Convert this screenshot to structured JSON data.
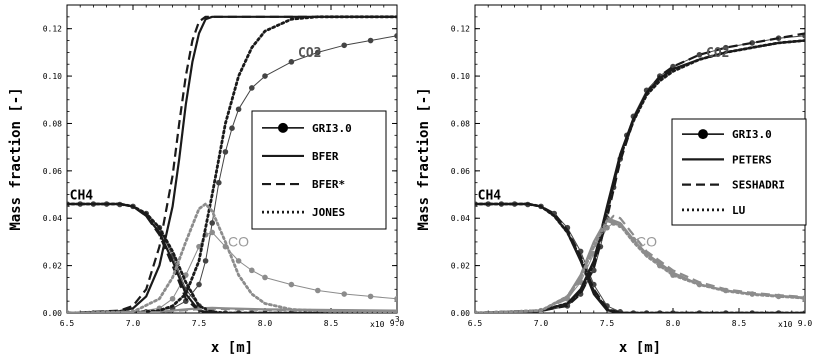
{
  "colors": {
    "dark": "#1a1a1a",
    "mid": "#444444",
    "co_gray": "#8c8c8c",
    "co_label": "#9a9a9a",
    "ch4_label": "#000000",
    "co2_label": "#555555"
  },
  "chart_data": [
    {
      "type": "line",
      "xlabel": "x [m]",
      "ylabel": "Mass fraction [-]",
      "xlim": [
        6.5,
        9.0
      ],
      "ylim": [
        0.0,
        0.13
      ],
      "x_multiplier_label": "x10",
      "x_multiplier_exponent": "-3",
      "xticks": [
        6.5,
        7.0,
        7.5,
        8.0,
        8.5,
        9.0
      ],
      "xtick_labels": [
        "6.5",
        "7.0",
        "7.5",
        "8.0",
        "8.5",
        "9.0"
      ],
      "yticks": [
        0.0,
        0.02,
        0.04,
        0.06,
        0.08,
        0.1,
        0.12
      ],
      "ytick_labels": [
        "0.00",
        "0.02",
        "0.04",
        "0.06",
        "0.08",
        "0.10",
        "0.12"
      ],
      "grid": false,
      "legend_position": "center-right",
      "legend": [
        "GRI3.0",
        "BFER",
        "BFER*",
        "JONES"
      ],
      "annotations": [
        "CH4",
        "CO2",
        "CO"
      ],
      "series": [
        {
          "name": "GRI3.0",
          "species": "CH4",
          "style": "marker-line",
          "x": [
            6.5,
            6.6,
            6.7,
            6.8,
            6.9,
            7.0,
            7.1,
            7.2,
            7.3,
            7.4,
            7.5,
            7.6,
            7.7,
            7.8,
            7.9,
            8.0,
            8.2,
            8.4,
            8.6,
            8.8,
            9.0
          ],
          "y": [
            0.046,
            0.046,
            0.046,
            0.046,
            0.0458,
            0.045,
            0.042,
            0.036,
            0.024,
            0.01,
            0.003,
            0.0005,
            0,
            0,
            0,
            0,
            0,
            0,
            0,
            0,
            0
          ]
        },
        {
          "name": "GRI3.0",
          "species": "CO2",
          "style": "marker-line",
          "x": [
            6.5,
            6.7,
            6.9,
            7.1,
            7.3,
            7.4,
            7.5,
            7.55,
            7.6,
            7.65,
            7.7,
            7.75,
            7.8,
            7.9,
            8.0,
            8.2,
            8.4,
            8.6,
            8.8,
            9.0
          ],
          "y": [
            0,
            0,
            0,
            0.0005,
            0.002,
            0.005,
            0.012,
            0.022,
            0.038,
            0.055,
            0.068,
            0.078,
            0.086,
            0.095,
            0.1,
            0.106,
            0.11,
            0.113,
            0.115,
            0.117
          ]
        },
        {
          "name": "GRI3.0",
          "species": "CO",
          "style": "marker-line-gray",
          "x": [
            6.5,
            6.8,
            7.0,
            7.2,
            7.3,
            7.4,
            7.5,
            7.55,
            7.6,
            7.7,
            7.8,
            7.9,
            8.0,
            8.2,
            8.4,
            8.6,
            8.8,
            9.0
          ],
          "y": [
            0,
            0,
            0.0003,
            0.002,
            0.006,
            0.016,
            0.028,
            0.033,
            0.034,
            0.028,
            0.022,
            0.018,
            0.015,
            0.012,
            0.0095,
            0.008,
            0.007,
            0.006
          ]
        },
        {
          "name": "BFER",
          "species": "CH4",
          "style": "solid",
          "x": [
            6.5,
            6.9,
            7.0,
            7.1,
            7.2,
            7.3,
            7.4,
            7.5,
            7.6,
            7.7,
            9.0
          ],
          "y": [
            0.046,
            0.046,
            0.045,
            0.041,
            0.034,
            0.022,
            0.008,
            0.001,
            0,
            0,
            0
          ]
        },
        {
          "name": "BFER",
          "species": "CO2",
          "style": "solid",
          "x": [
            6.5,
            6.9,
            7.0,
            7.1,
            7.2,
            7.3,
            7.35,
            7.4,
            7.45,
            7.5,
            7.55,
            7.6,
            7.7,
            9.0
          ],
          "y": [
            0,
            0.0008,
            0.002,
            0.007,
            0.02,
            0.045,
            0.065,
            0.088,
            0.106,
            0.118,
            0.124,
            0.125,
            0.125,
            0.125
          ]
        },
        {
          "name": "BFER",
          "species": "CO",
          "style": "solid-gray",
          "x": [
            6.5,
            7.2,
            7.4,
            7.5,
            7.6,
            7.7,
            8.0,
            9.0
          ],
          "y": [
            0,
            0.0005,
            0.0015,
            0.002,
            0.0022,
            0.002,
            0.0015,
            0.001
          ]
        },
        {
          "name": "BFER*",
          "species": "CH4",
          "style": "dashed",
          "x": [
            6.5,
            6.9,
            7.0,
            7.1,
            7.2,
            7.3,
            7.4,
            7.5,
            7.6,
            9.0
          ],
          "y": [
            0.046,
            0.046,
            0.045,
            0.041,
            0.033,
            0.02,
            0.006,
            0.0008,
            0,
            0
          ]
        },
        {
          "name": "BFER*",
          "species": "CO2",
          "style": "dashed",
          "x": [
            6.5,
            6.9,
            7.0,
            7.1,
            7.2,
            7.3,
            7.35,
            7.4,
            7.45,
            7.5,
            7.55,
            9.0
          ],
          "y": [
            0,
            0.001,
            0.003,
            0.01,
            0.028,
            0.058,
            0.08,
            0.1,
            0.115,
            0.123,
            0.125,
            0.125
          ]
        },
        {
          "name": "JONES",
          "species": "CH4",
          "style": "dotted",
          "x": [
            6.5,
            6.9,
            7.0,
            7.1,
            7.2,
            7.3,
            7.4,
            7.5,
            7.6,
            7.7,
            9.0
          ],
          "y": [
            0.046,
            0.046,
            0.045,
            0.042,
            0.036,
            0.026,
            0.013,
            0.003,
            0.0005,
            0,
            0
          ]
        },
        {
          "name": "JONES",
          "species": "CO2",
          "style": "dotted",
          "x": [
            6.5,
            7.0,
            7.2,
            7.3,
            7.4,
            7.5,
            7.6,
            7.7,
            7.8,
            7.9,
            8.0,
            8.2,
            8.4,
            8.6,
            9.0
          ],
          "y": [
            0,
            0.0002,
            0.001,
            0.003,
            0.008,
            0.022,
            0.05,
            0.08,
            0.1,
            0.112,
            0.119,
            0.124,
            0.125,
            0.125,
            0.125
          ]
        },
        {
          "name": "JONES",
          "species": "CO",
          "style": "dotted-gray",
          "x": [
            6.5,
            7.0,
            7.2,
            7.3,
            7.4,
            7.5,
            7.55,
            7.6,
            7.7,
            7.8,
            7.9,
            8.0,
            8.2,
            8.5,
            9.0
          ],
          "y": [
            0,
            0.0005,
            0.006,
            0.015,
            0.03,
            0.044,
            0.046,
            0.043,
            0.03,
            0.016,
            0.008,
            0.004,
            0.0015,
            0.0007,
            0.0005
          ]
        },
        {
          "name": "",
          "species": "CO",
          "style": "dashed-gray",
          "x": [
            6.5,
            7.2,
            7.4,
            7.5,
            7.6,
            7.7,
            8.0,
            9.0
          ],
          "y": [
            0,
            0.0004,
            0.0012,
            0.0016,
            0.0018,
            0.0017,
            0.0013,
            0.0009
          ]
        }
      ],
      "label_positions": [
        {
          "text": "CH4",
          "x": 6.52,
          "y": 0.048,
          "kind": "ch4"
        },
        {
          "text": "CO2",
          "x": 8.25,
          "y": 0.108,
          "kind": "co2"
        },
        {
          "text": "CO",
          "x": 7.72,
          "y": 0.028,
          "kind": "co"
        }
      ]
    },
    {
      "type": "line",
      "xlabel": "x [m]",
      "ylabel": "Mass fraction [-]",
      "xlim": [
        6.5,
        9.0
      ],
      "ylim": [
        0.0,
        0.13
      ],
      "x_multiplier_label": "x10",
      "x_multiplier_exponent": "",
      "xticks": [
        6.5,
        7.0,
        7.5,
        8.0,
        8.5,
        9.0
      ],
      "xtick_labels": [
        "6.5",
        "7.0",
        "7.5",
        "8.0",
        "8.5",
        "9.0"
      ],
      "yticks": [
        0.0,
        0.02,
        0.04,
        0.06,
        0.08,
        0.1,
        0.12
      ],
      "ytick_labels": [
        "0.00",
        "0.02",
        "0.04",
        "0.06",
        "0.08",
        "0.10",
        "0.12"
      ],
      "grid": false,
      "legend_position": "center-right",
      "legend": [
        "GRI3.0",
        "PETERS",
        "SESHADRI",
        "LU"
      ],
      "annotations": [
        "CH4",
        "CO2",
        "CO"
      ],
      "series": [
        {
          "name": "GRI3.0",
          "species": "CH4",
          "style": "marker-line",
          "x": [
            6.5,
            6.6,
            6.7,
            6.8,
            6.9,
            7.0,
            7.1,
            7.2,
            7.3,
            7.4,
            7.5,
            7.6,
            7.7,
            7.8,
            7.9,
            8.0,
            8.2,
            8.4,
            8.6,
            8.8,
            9.0
          ],
          "y": [
            0.046,
            0.046,
            0.046,
            0.046,
            0.0458,
            0.045,
            0.042,
            0.036,
            0.026,
            0.012,
            0.003,
            0.0005,
            0,
            0,
            0,
            0,
            0,
            0,
            0,
            0,
            0
          ]
        },
        {
          "name": "GRI3.0",
          "species": "CO2",
          "style": "marker-line",
          "x": [
            6.5,
            6.8,
            7.0,
            7.2,
            7.3,
            7.4,
            7.45,
            7.5,
            7.55,
            7.6,
            7.65,
            7.7,
            7.8,
            7.9,
            8.0,
            8.2,
            8.4,
            8.6,
            8.8,
            9.0
          ],
          "y": [
            0,
            0,
            0.0005,
            0.003,
            0.008,
            0.018,
            0.028,
            0.04,
            0.053,
            0.065,
            0.075,
            0.083,
            0.094,
            0.1,
            0.104,
            0.109,
            0.112,
            0.114,
            0.116,
            0.117
          ]
        },
        {
          "name": "GRI3.0",
          "species": "CO",
          "style": "marker-line-gray",
          "x": [
            6.5,
            6.8,
            7.0,
            7.2,
            7.3,
            7.4,
            7.5,
            7.55,
            7.6,
            7.7,
            7.8,
            7.9,
            8.0,
            8.2,
            8.4,
            8.6,
            8.8,
            9.0
          ],
          "y": [
            0,
            0,
            0.001,
            0.006,
            0.013,
            0.025,
            0.036,
            0.038,
            0.037,
            0.031,
            0.025,
            0.02,
            0.016,
            0.012,
            0.0095,
            0.008,
            0.007,
            0.006
          ]
        },
        {
          "name": "PETERS",
          "species": "CH4",
          "style": "solid",
          "x": [
            6.5,
            6.9,
            7.0,
            7.1,
            7.2,
            7.3,
            7.4,
            7.5,
            7.6,
            9.0
          ],
          "y": [
            0.046,
            0.046,
            0.045,
            0.041,
            0.034,
            0.022,
            0.008,
            0.0012,
            0,
            0
          ]
        },
        {
          "name": "PETERS",
          "species": "CO2",
          "style": "solid",
          "x": [
            6.5,
            7.0,
            7.2,
            7.3,
            7.4,
            7.5,
            7.6,
            7.7,
            7.8,
            7.9,
            8.0,
            8.2,
            8.4,
            8.6,
            8.8,
            9.0
          ],
          "y": [
            0,
            0.001,
            0.004,
            0.01,
            0.022,
            0.045,
            0.067,
            0.082,
            0.093,
            0.099,
            0.103,
            0.107,
            0.11,
            0.112,
            0.114,
            0.115
          ]
        },
        {
          "name": "PETERS",
          "species": "CO",
          "style": "solid-gray",
          "x": [
            6.5,
            7.0,
            7.2,
            7.3,
            7.4,
            7.5,
            7.6,
            7.7,
            7.8,
            8.0,
            8.2,
            8.4,
            8.6,
            8.8,
            9.0
          ],
          "y": [
            0,
            0.001,
            0.007,
            0.016,
            0.03,
            0.04,
            0.038,
            0.031,
            0.025,
            0.017,
            0.012,
            0.0095,
            0.008,
            0.0072,
            0.0065
          ]
        },
        {
          "name": "SESHADRI",
          "species": "CH4",
          "style": "dashed",
          "x": [
            6.5,
            6.9,
            7.0,
            7.1,
            7.2,
            7.3,
            7.4,
            7.5,
            7.6,
            9.0
          ],
          "y": [
            0.046,
            0.046,
            0.045,
            0.042,
            0.035,
            0.024,
            0.01,
            0.002,
            0,
            0
          ]
        },
        {
          "name": "SESHADRI",
          "species": "CO2",
          "style": "dashed",
          "x": [
            6.5,
            7.0,
            7.2,
            7.3,
            7.4,
            7.5,
            7.6,
            7.7,
            7.8,
            7.9,
            8.0,
            8.2,
            8.4,
            8.6,
            8.8,
            9.0
          ],
          "y": [
            0,
            0.001,
            0.003,
            0.008,
            0.019,
            0.04,
            0.064,
            0.081,
            0.093,
            0.1,
            0.104,
            0.109,
            0.112,
            0.114,
            0.116,
            0.118
          ]
        },
        {
          "name": "SESHADRI",
          "species": "CO",
          "style": "dashed-gray",
          "x": [
            6.5,
            7.0,
            7.2,
            7.3,
            7.4,
            7.5,
            7.55,
            7.6,
            7.7,
            7.8,
            8.0,
            8.2,
            8.4,
            8.6,
            8.8,
            9.0
          ],
          "y": [
            0,
            0.001,
            0.006,
            0.014,
            0.027,
            0.038,
            0.041,
            0.04,
            0.033,
            0.026,
            0.018,
            0.013,
            0.01,
            0.0085,
            0.0075,
            0.0068
          ]
        },
        {
          "name": "LU",
          "species": "CH4",
          "style": "dotted",
          "x": [
            6.5,
            6.9,
            7.0,
            7.1,
            7.2,
            7.3,
            7.4,
            7.5,
            7.6,
            9.0
          ],
          "y": [
            0.046,
            0.046,
            0.045,
            0.041,
            0.034,
            0.023,
            0.009,
            0.0015,
            0,
            0
          ]
        },
        {
          "name": "LU",
          "species": "CO2",
          "style": "dotted",
          "x": [
            6.5,
            7.0,
            7.2,
            7.3,
            7.4,
            7.5,
            7.6,
            7.7,
            7.8,
            7.9,
            8.0,
            8.2,
            8.4,
            8.6,
            8.8,
            9.0
          ],
          "y": [
            0,
            0.001,
            0.004,
            0.009,
            0.021,
            0.043,
            0.066,
            0.081,
            0.092,
            0.098,
            0.102,
            0.107,
            0.11,
            0.112,
            0.114,
            0.115
          ]
        },
        {
          "name": "LU",
          "species": "CO",
          "style": "dotted-gray",
          "x": [
            6.5,
            7.0,
            7.2,
            7.3,
            7.4,
            7.5,
            7.6,
            7.7,
            7.8,
            8.0,
            8.2,
            8.4,
            8.6,
            8.8,
            9.0
          ],
          "y": [
            0,
            0.001,
            0.007,
            0.015,
            0.028,
            0.039,
            0.037,
            0.03,
            0.024,
            0.016,
            0.012,
            0.0093,
            0.0078,
            0.007,
            0.0063
          ]
        }
      ],
      "label_positions": [
        {
          "text": "CH4",
          "x": 6.52,
          "y": 0.048,
          "kind": "ch4"
        },
        {
          "text": "CO2",
          "x": 8.25,
          "y": 0.108,
          "kind": "co2"
        },
        {
          "text": "CO",
          "x": 7.72,
          "y": 0.028,
          "kind": "co"
        }
      ]
    }
  ]
}
